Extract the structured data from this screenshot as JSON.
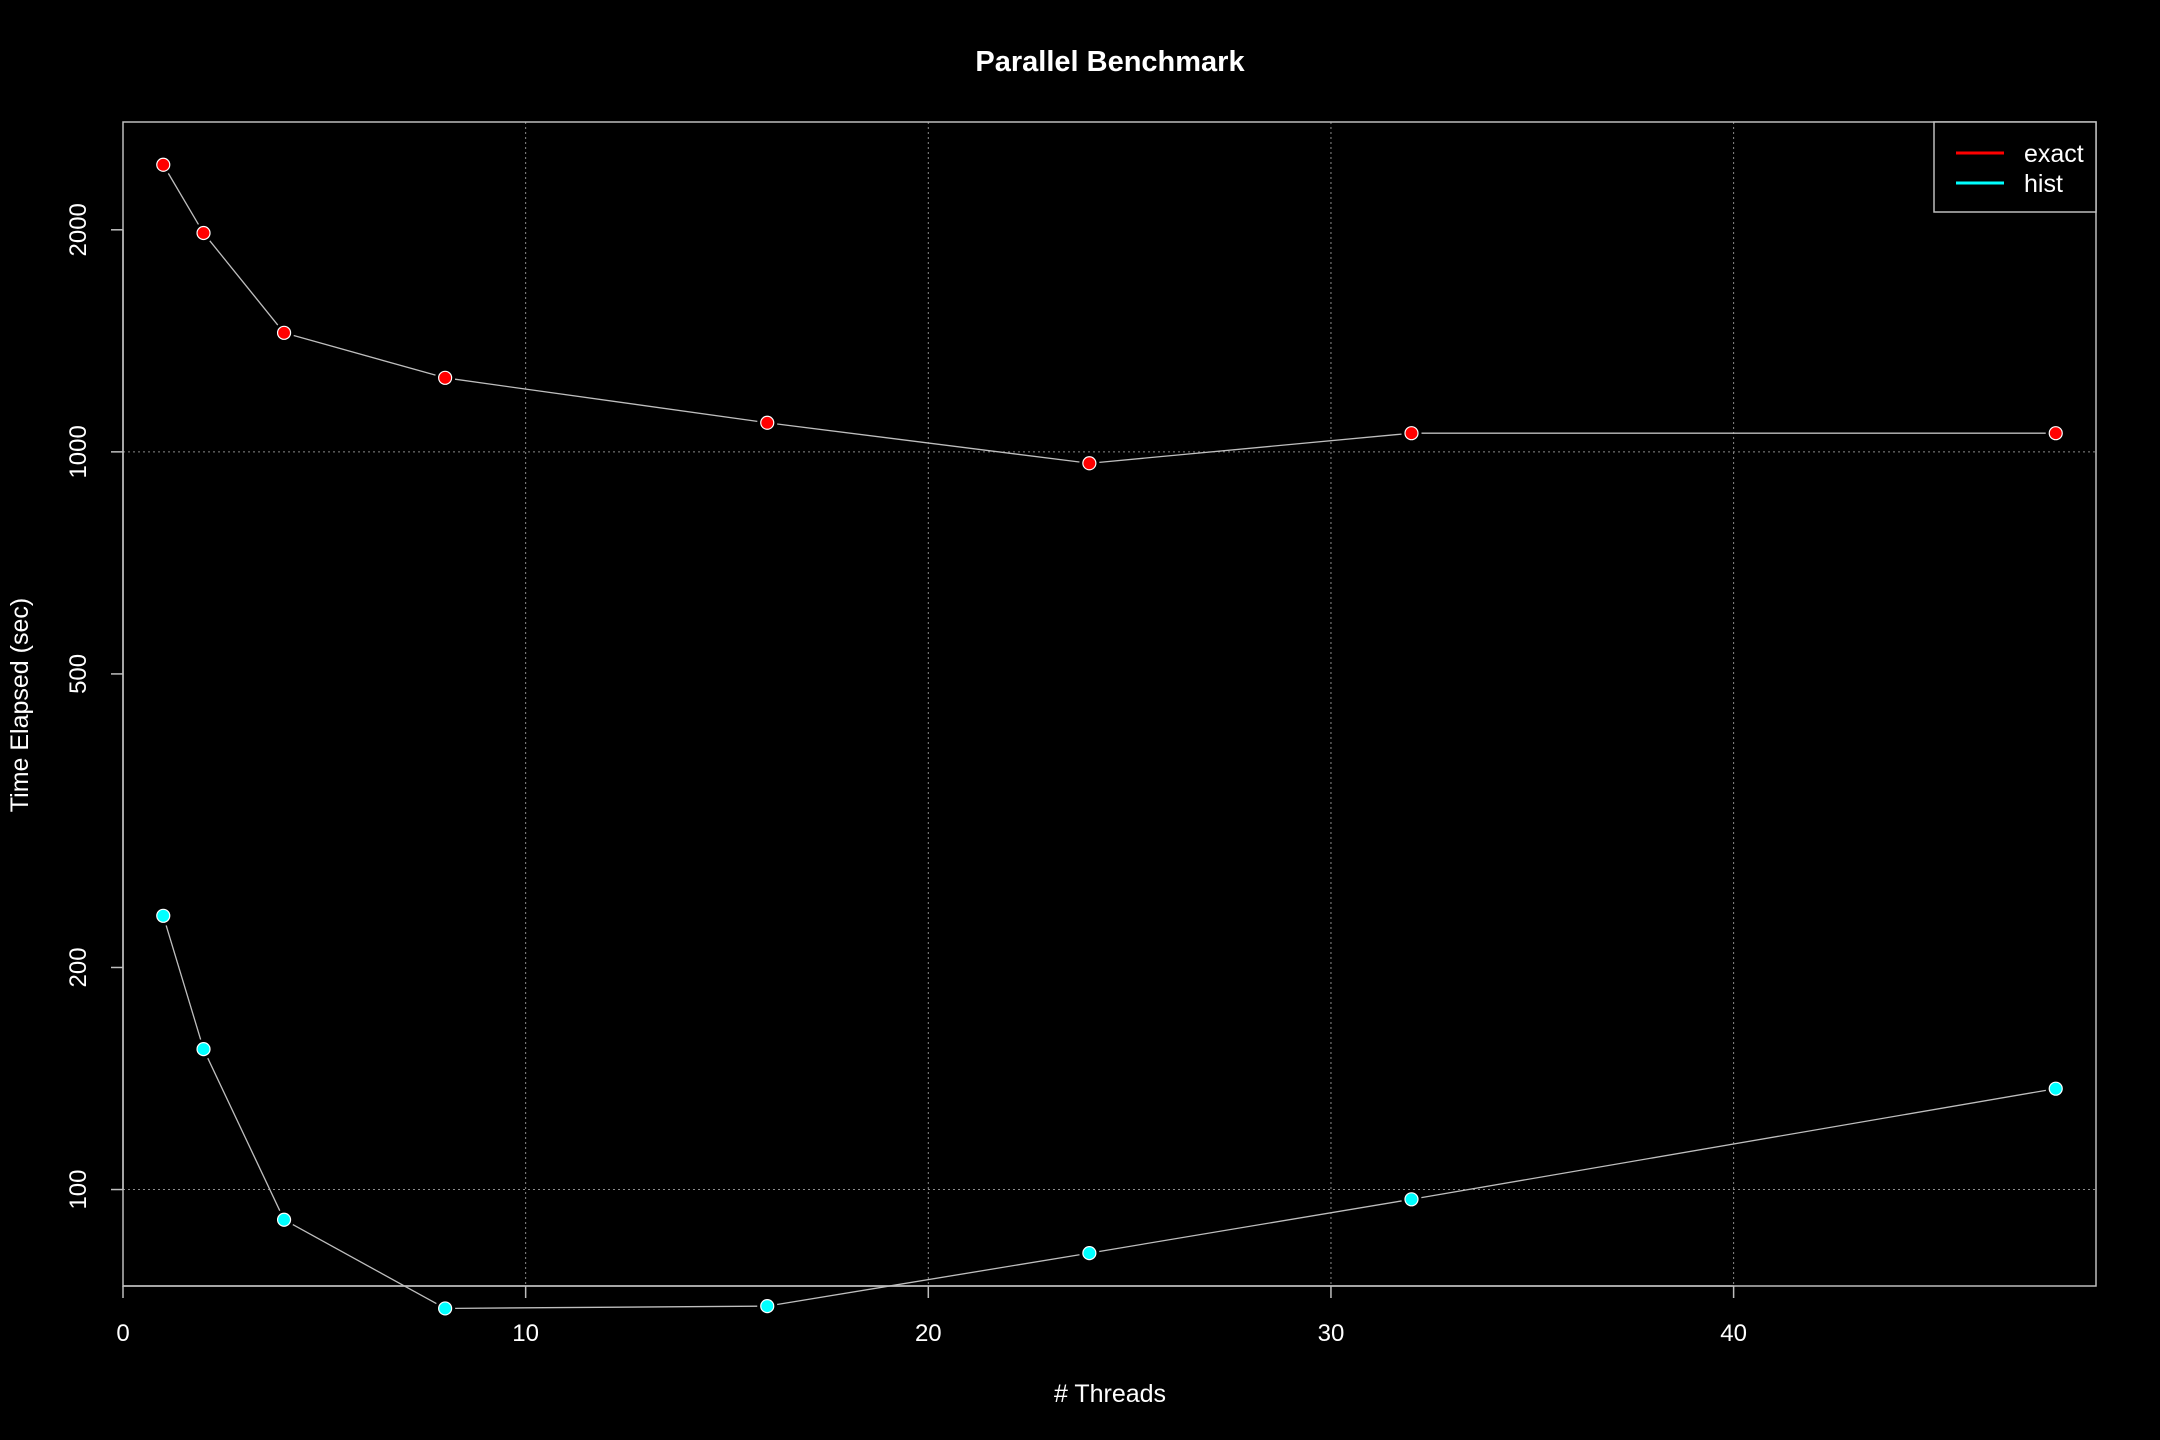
{
  "chart_data": {
    "type": "line",
    "title": "Parallel Benchmark",
    "xlabel": "# Threads",
    "ylabel": "Time Elapsed (sec)",
    "x": [
      1,
      2,
      4,
      8,
      16,
      24,
      32,
      48
    ],
    "xlim": [
      0,
      49
    ],
    "ylim": [
      74,
      2800
    ],
    "y_scale": "log",
    "x_ticks": [
      0,
      10,
      20,
      30,
      40
    ],
    "y_ticks": [
      100,
      200,
      500,
      1000,
      2000
    ],
    "x_grid": [
      0,
      10,
      20,
      30,
      40
    ],
    "y_grid": [
      100,
      1000
    ],
    "grid": true,
    "legend_position": "top-right",
    "series": [
      {
        "name": "exact",
        "color": "#ff0000",
        "values": [
          2450,
          1980,
          1450,
          1260,
          1095,
          965,
          1060,
          1060
        ]
      },
      {
        "name": "hist",
        "color": "#00ffff",
        "values": [
          235,
          155,
          91,
          69,
          69.5,
          82,
          97,
          137
        ]
      }
    ],
    "line_color": "#bebebe",
    "background": "#000000",
    "foreground": "#ffffff"
  }
}
